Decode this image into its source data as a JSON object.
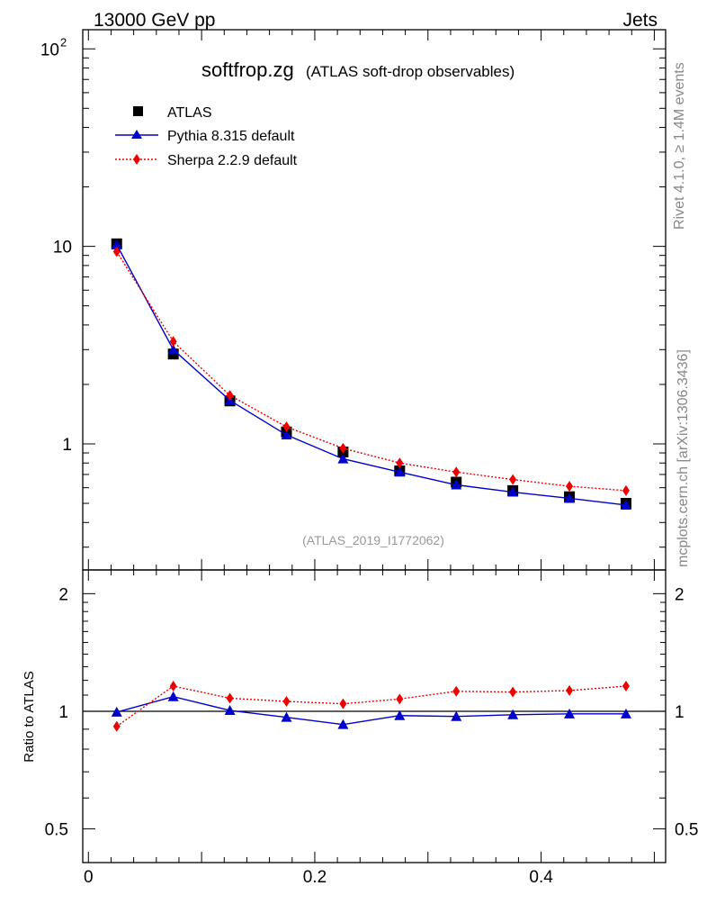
{
  "header": {
    "energy_label": "13000 GeV pp",
    "process_label": "Jets"
  },
  "side_text": {
    "rivet": "Rivet 4.1.0, ≥ 1.4M events",
    "mcplots": "mcplots.cern.ch [arXiv:1306.3436]"
  },
  "chart_data": [
    {
      "type": "scatter",
      "panel": "main",
      "title": "softfrop.zg",
      "subtitle": "(ATLAS soft-drop observables)",
      "watermark": "(ATLAS_2019_I1772062)",
      "yscale": "log",
      "xlim": [
        -0.005,
        0.51
      ],
      "ylim": [
        0.23,
        125
      ],
      "ytick_labels": [
        "1",
        "10",
        "10^2"
      ],
      "ytick_values": [
        1,
        10,
        100
      ],
      "x": [
        0.025,
        0.075,
        0.125,
        0.175,
        0.225,
        0.275,
        0.325,
        0.375,
        0.425,
        0.475
      ],
      "series": [
        {
          "name": "ATLAS",
          "color": "#000000",
          "marker": "square",
          "line": "none",
          "values": [
            10.3,
            2.85,
            1.65,
            1.15,
            0.91,
            0.73,
            0.64,
            0.58,
            0.54,
            0.5
          ]
        },
        {
          "name": "Pythia 8.315 default",
          "color": "#0000cc",
          "marker": "triangle",
          "line": "solid",
          "values": [
            10.2,
            3.0,
            1.66,
            1.11,
            0.84,
            0.72,
            0.62,
            0.57,
            0.53,
            0.49
          ]
        },
        {
          "name": "Sherpa 2.2.9 default",
          "color": "#ee0000",
          "marker": "diamond",
          "line": "dotted",
          "values": [
            9.4,
            3.3,
            1.76,
            1.22,
            0.95,
            0.8,
            0.72,
            0.66,
            0.61,
            0.58
          ]
        }
      ],
      "legend": "top-left"
    },
    {
      "type": "line",
      "panel": "ratio",
      "ylabel": "Ratio to ATLAS",
      "yscale": "log",
      "ylim": [
        0.41,
        2.3
      ],
      "ytick_labels": [
        "0.5",
        "1",
        "2"
      ],
      "ytick_values": [
        0.5,
        1,
        2
      ],
      "xtick_labels": [
        "0",
        "0.2",
        "0.4"
      ],
      "xtick_values": [
        0,
        0.2,
        0.4
      ],
      "x": [
        0.025,
        0.075,
        0.125,
        0.175,
        0.225,
        0.275,
        0.325,
        0.375,
        0.425,
        0.475
      ],
      "series": [
        {
          "name": "Pythia 8.315 default",
          "color": "#0000cc",
          "values": [
            0.995,
            1.09,
            1.005,
            0.965,
            0.925,
            0.975,
            0.97,
            0.98,
            0.985,
            0.985
          ]
        },
        {
          "name": "Sherpa 2.2.9 default",
          "color": "#ee0000",
          "values": [
            0.915,
            1.16,
            1.08,
            1.06,
            1.045,
            1.075,
            1.125,
            1.12,
            1.13,
            1.16
          ]
        }
      ]
    }
  ]
}
